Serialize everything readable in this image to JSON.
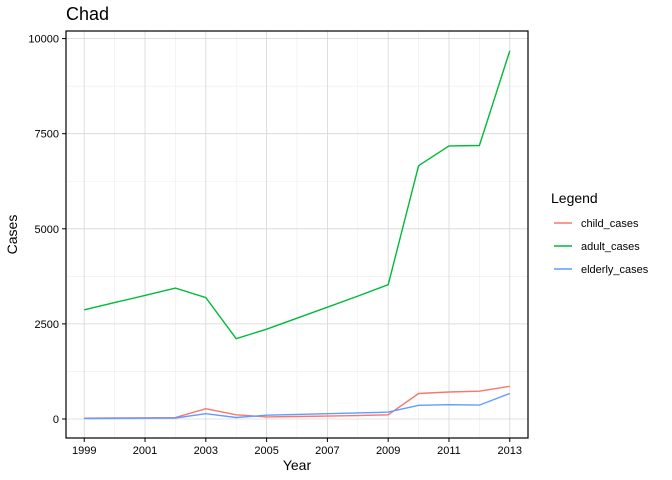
{
  "chart_data": {
    "type": "line",
    "title": "Chad",
    "xlabel": "Year",
    "ylabel": "Cases",
    "xlim": [
      1998.4,
      2013.6
    ],
    "ylim": [
      -500,
      10200
    ],
    "x_ticks": [
      1999,
      2001,
      2003,
      2005,
      2007,
      2009,
      2011,
      2013
    ],
    "y_ticks": [
      0,
      2500,
      5000,
      7500,
      10000
    ],
    "grid": true,
    "legend": {
      "title": "Legend",
      "placement": "right"
    },
    "series": [
      {
        "name": "child_cases",
        "color": "#F8766D",
        "x": [
          1999,
          2000,
          2001,
          2002,
          2003,
          2004,
          2005,
          2006,
          2007,
          2008,
          2009,
          2010,
          2011,
          2012,
          2013
        ],
        "y": [
          20,
          25,
          30,
          35,
          270,
          110,
          55,
          65,
          75,
          90,
          110,
          670,
          710,
          730,
          860
        ]
      },
      {
        "name": "adult_cases",
        "color": "#00BA38",
        "x": [
          1999,
          2000,
          2001,
          2002,
          2003,
          2004,
          2005,
          2006,
          2007,
          2008,
          2009,
          2010,
          2011,
          2012,
          2013
        ],
        "y": [
          2870,
          3060,
          3250,
          3440,
          3190,
          2110,
          2360,
          2650,
          2940,
          3230,
          3530,
          6660,
          7180,
          7190,
          9680
        ]
      },
      {
        "name": "elderly_cases",
        "color": "#619CFF",
        "x": [
          1999,
          2000,
          2001,
          2002,
          2003,
          2004,
          2005,
          2006,
          2007,
          2008,
          2009,
          2010,
          2011,
          2012,
          2013
        ],
        "y": [
          10,
          15,
          20,
          25,
          140,
          40,
          100,
          120,
          140,
          160,
          180,
          360,
          375,
          365,
          670
        ]
      }
    ]
  }
}
